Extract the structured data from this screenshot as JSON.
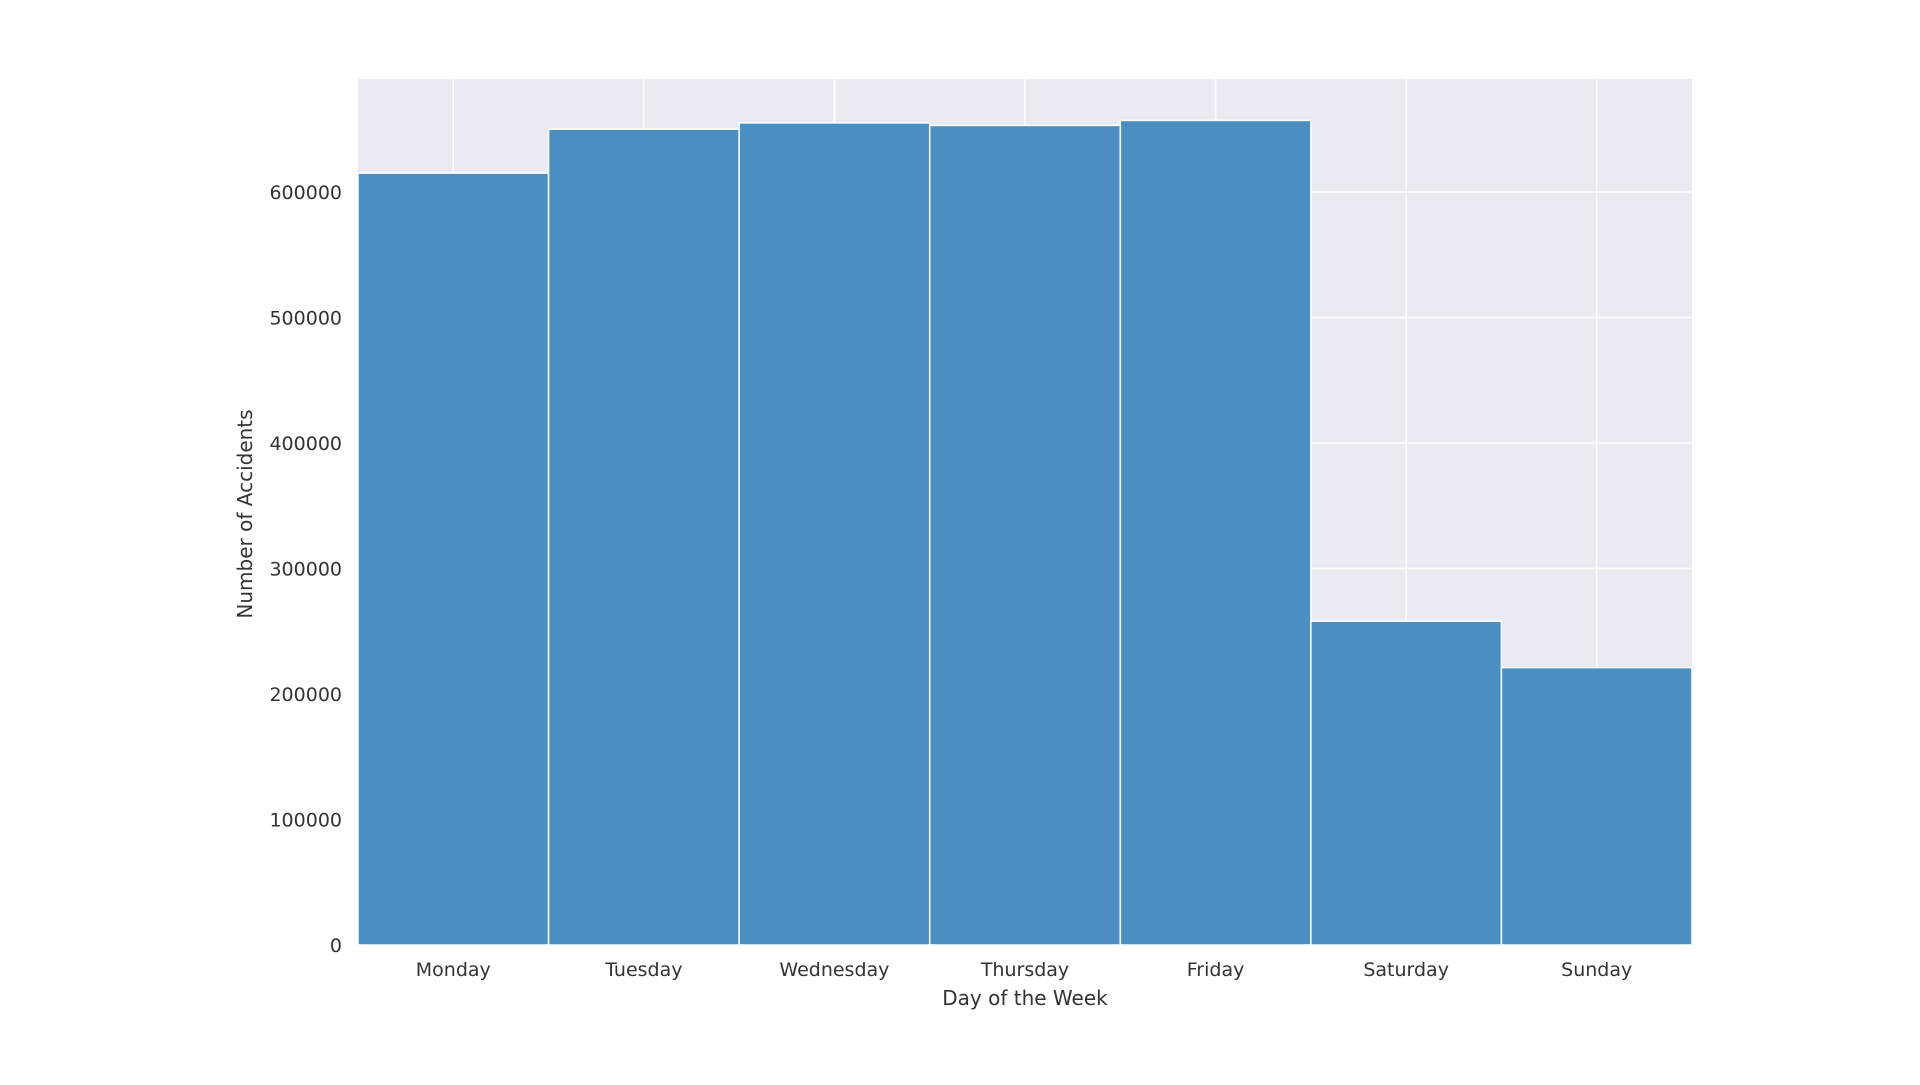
{
  "chart_data": {
    "type": "bar",
    "title": "",
    "xlabel": "Day of the Week",
    "ylabel": "Number of Accidents",
    "categories": [
      "Monday",
      "Tuesday",
      "Wednesday",
      "Thursday",
      "Friday",
      "Saturday",
      "Sunday"
    ],
    "values": [
      615000,
      650000,
      655000,
      653000,
      657000,
      258000,
      221000
    ],
    "ylim": [
      0,
      690000
    ],
    "yticks": [
      0,
      100000,
      200000,
      300000,
      400000,
      500000,
      600000
    ],
    "ytick_labels": [
      "0",
      "100000",
      "200000",
      "300000",
      "400000",
      "500000",
      "600000"
    ],
    "grid": true,
    "colors": {
      "bar": "#4b8fc2",
      "plot_background": "#eaeaf2",
      "grid": "#ffffff",
      "text": "#333333"
    }
  }
}
